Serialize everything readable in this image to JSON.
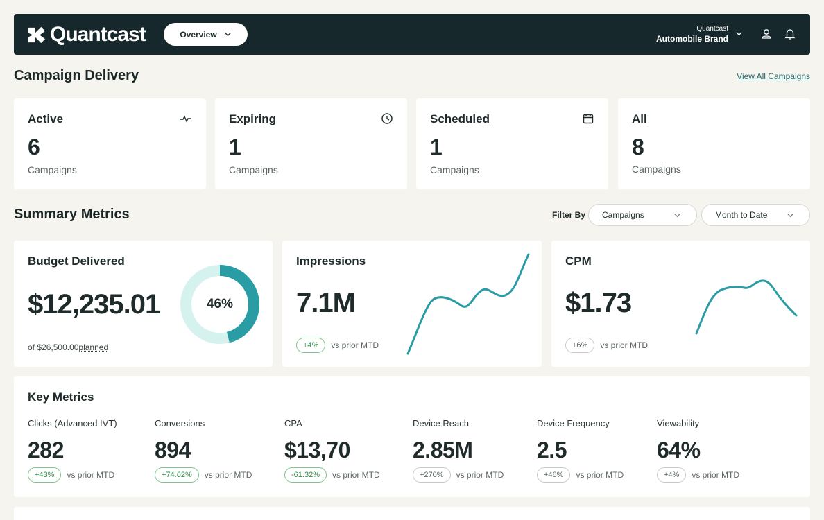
{
  "header": {
    "brand": "Quantcast",
    "view_selector": "Overview",
    "account_org": "Quantcast",
    "account_brand": "Automobile Brand",
    "icons": [
      "user-icon",
      "bell-icon"
    ]
  },
  "campaign_delivery": {
    "title": "Campaign Delivery",
    "view_all": "View All Campaigns",
    "cards": [
      {
        "label": "Active",
        "count": "6",
        "sub": "Campaigns",
        "icon": "activity-pulse-icon"
      },
      {
        "label": "Expiring",
        "count": "1",
        "sub": "Campaigns",
        "icon": "clock-icon"
      },
      {
        "label": "Scheduled",
        "count": "1",
        "sub": "Campaigns",
        "icon": "calendar-icon"
      },
      {
        "label": "All",
        "count": "8",
        "sub": "Campaigns"
      }
    ]
  },
  "summary": {
    "title": "Summary Metrics",
    "filter_label": "Filter By",
    "filter_dimension": "Campaigns",
    "filter_period": "Month to Date",
    "budget": {
      "title": "Budget Delivered",
      "value": "$12,235.01",
      "of_prefix": "of",
      "planned_amount": "$26,500.00",
      "planned_word": "planned",
      "percent_label": "46%",
      "fraction": 0.46
    },
    "impressions": {
      "title": "Impressions",
      "value": "7.1M",
      "delta": "+4%",
      "delta_text": "vs prior MTD"
    },
    "cpm": {
      "title": "CPM",
      "value": "$1.73",
      "delta": "+6%",
      "delta_text": "vs prior MTD"
    }
  },
  "key_metrics": {
    "title": "Key Metrics",
    "items": [
      {
        "label": "Clicks (Advanced IVT)",
        "value": "282",
        "delta": "+43%",
        "delta_text": "vs prior MTD",
        "trend": "up"
      },
      {
        "label": "Conversions",
        "value": "894",
        "delta": "+74.62%",
        "delta_text": "vs prior MTD",
        "trend": "up"
      },
      {
        "label": "CPA",
        "value": "$13,70",
        "delta": "-61.32%",
        "delta_text": "vs prior MTD",
        "trend": "up"
      },
      {
        "label": "Device Reach",
        "value": "2.85M",
        "delta": "+270%",
        "delta_text": "vs prior MTD",
        "trend": "neutral"
      },
      {
        "label": "Device Frequency",
        "value": "2.5",
        "delta": "+46%",
        "delta_text": "vs prior MTD",
        "trend": "neutral"
      },
      {
        "label": "Viewability",
        "value": "64%",
        "delta": "+4%",
        "delta_text": "vs prior MTD",
        "trend": "neutral"
      }
    ]
  },
  "colors": {
    "topbar": "#16282b",
    "accent_teal": "#2a9ca3",
    "donut_track": "#d6f2ef",
    "positive": "#2e8b43"
  }
}
